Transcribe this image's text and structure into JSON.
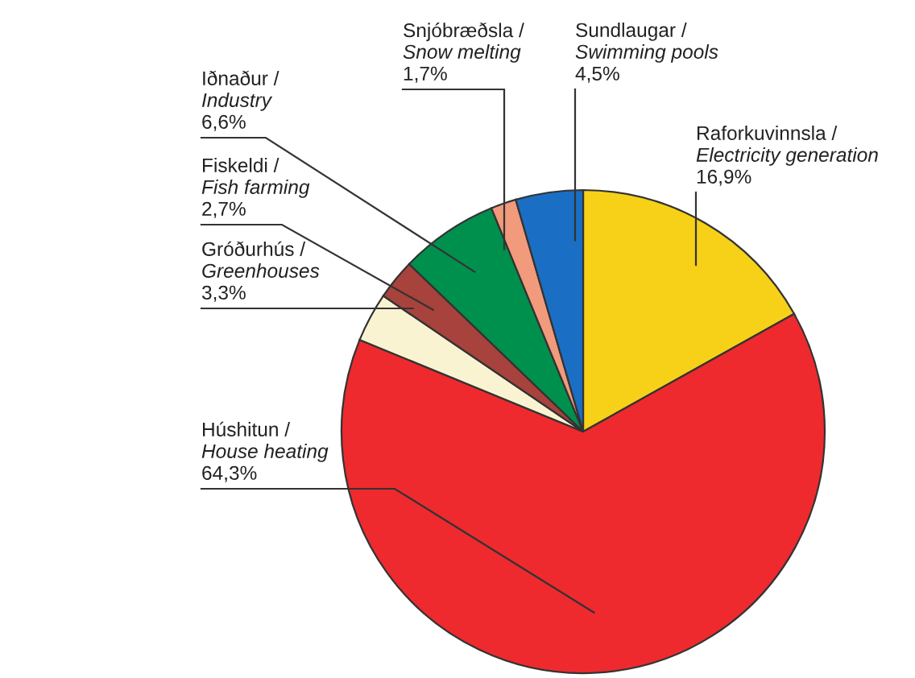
{
  "chart_data": {
    "type": "pie",
    "categories": [
      "Raforkuvinnsla /\nElectricity generation",
      "Húshitun /\nHouse heating",
      "Gróðurhús /\nGreenhouses",
      "Fiskeldi /\nFish farming",
      "Iðnaður /\nIndustry",
      "Snjóbræðsla /\nSnow melting",
      "Sundlaugar /\nSwimming pools"
    ],
    "values": [
      16.9,
      64.3,
      3.3,
      2.7,
      6.6,
      1.7,
      4.5
    ],
    "value_labels": [
      "16,9%",
      "64,3%",
      "3,3%",
      "2,7%",
      "6,6%",
      "1,7%",
      "4,5%"
    ],
    "colors": [
      "#f7d117",
      "#ee2a2e",
      "#f9f3d2",
      "#a8423c",
      "#00904e",
      "#f29a7c",
      "#1a6fc4"
    ]
  }
}
